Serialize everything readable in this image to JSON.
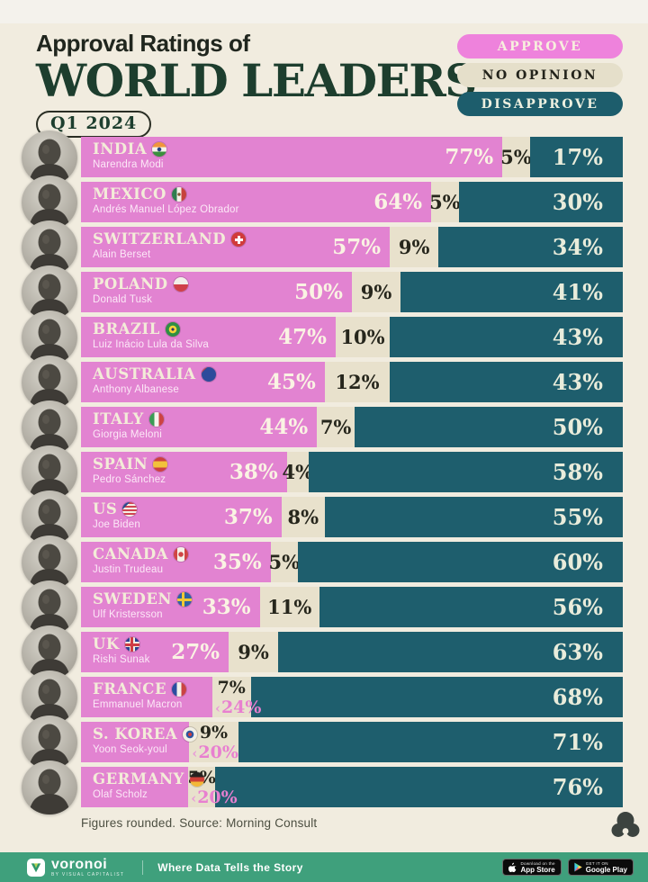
{
  "header": {
    "kicker": "Approval Ratings of",
    "title": "WORLD LEADERS",
    "period": "Q1 2024",
    "legend": {
      "approve": "APPROVE",
      "no_opinion": "NO OPINION",
      "disapprove": "DISAPPROVE"
    }
  },
  "colors": {
    "approve": "#e283d1",
    "no_opinion": "#e8e1cc",
    "disapprove": "#1e5e6d",
    "background": "#f1ecdf",
    "title_green": "#1d3e2e",
    "footer_green": "#3fa07c"
  },
  "chart_data": {
    "type": "bar",
    "stacked": true,
    "orientation": "horizontal",
    "unit": "percent",
    "title": "Approval Ratings of World Leaders",
    "period": "Q1 2024",
    "series_names": [
      "Approve",
      "No opinion",
      "Disapprove"
    ],
    "xlim": [
      0,
      100
    ],
    "rows": [
      {
        "country": "INDIA",
        "leader": "Narendra Modi",
        "flag": "india",
        "approve": 77,
        "no_opinion": 5,
        "disapprove": 17,
        "approve_label_outside": false
      },
      {
        "country": "MEXICO",
        "leader": "Andrés Manuel López Obrador",
        "flag": "mexico",
        "approve": 64,
        "no_opinion": 5,
        "disapprove": 30,
        "approve_label_outside": false
      },
      {
        "country": "SWITZERLAND",
        "leader": "Alain Berset",
        "flag": "switzerland",
        "approve": 57,
        "no_opinion": 9,
        "disapprove": 34,
        "approve_label_outside": false
      },
      {
        "country": "POLAND",
        "leader": "Donald Tusk",
        "flag": "poland",
        "approve": 50,
        "no_opinion": 9,
        "disapprove": 41,
        "approve_label_outside": false
      },
      {
        "country": "BRAZIL",
        "leader": "Luiz Inácio Lula da Silva",
        "flag": "brazil",
        "approve": 47,
        "no_opinion": 10,
        "disapprove": 43,
        "approve_label_outside": false
      },
      {
        "country": "AUSTRALIA",
        "leader": "Anthony Albanese",
        "flag": "australia",
        "approve": 45,
        "no_opinion": 12,
        "disapprove": 43,
        "approve_label_outside": false
      },
      {
        "country": "ITALY",
        "leader": "Giorgia Meloni",
        "flag": "italy",
        "approve": 44,
        "no_opinion": 7,
        "disapprove": 50,
        "approve_label_outside": false
      },
      {
        "country": "SPAIN",
        "leader": "Pedro Sánchez",
        "flag": "spain",
        "approve": 38,
        "no_opinion": 4,
        "disapprove": 58,
        "approve_label_outside": false
      },
      {
        "country": "US",
        "leader": "Joe Biden",
        "flag": "us",
        "approve": 37,
        "no_opinion": 8,
        "disapprove": 55,
        "approve_label_outside": false
      },
      {
        "country": "CANADA",
        "leader": "Justin Trudeau",
        "flag": "canada",
        "approve": 35,
        "no_opinion": 5,
        "disapprove": 60,
        "approve_label_outside": false
      },
      {
        "country": "SWEDEN",
        "leader": "Ulf Kristersson",
        "flag": "sweden",
        "approve": 33,
        "no_opinion": 11,
        "disapprove": 56,
        "approve_label_outside": false
      },
      {
        "country": "UK",
        "leader": "Rishi Sunak",
        "flag": "uk",
        "approve": 27,
        "no_opinion": 9,
        "disapprove": 63,
        "approve_label_outside": false
      },
      {
        "country": "FRANCE",
        "leader": "Emmanuel Macron",
        "flag": "france",
        "approve": 24,
        "no_opinion": 7,
        "disapprove": 68,
        "approve_label_outside": true
      },
      {
        "country": "S. KOREA",
        "leader": "Yoon Seok-youl",
        "flag": "skorea",
        "approve": 20,
        "no_opinion": 9,
        "disapprove": 71,
        "approve_label_outside": true
      },
      {
        "country": "GERMANY",
        "leader": "Olaf Scholz",
        "flag": "germany",
        "approve": 20,
        "no_opinion": 5,
        "disapprove": 76,
        "approve_label_outside": true
      }
    ]
  },
  "footer": {
    "note": "Figures rounded. Source: Morning Consult"
  },
  "bottom_bar": {
    "brand": "voronoi",
    "brand_sub": "BY VISUAL CAPITALIST",
    "tagline": "Where Data Tells the Story",
    "badges": [
      {
        "line1": "Download on the",
        "line2": "App Store",
        "icon": "apple"
      },
      {
        "line1": "GET IT ON",
        "line2": "Google Play",
        "icon": "google-play"
      }
    ]
  }
}
